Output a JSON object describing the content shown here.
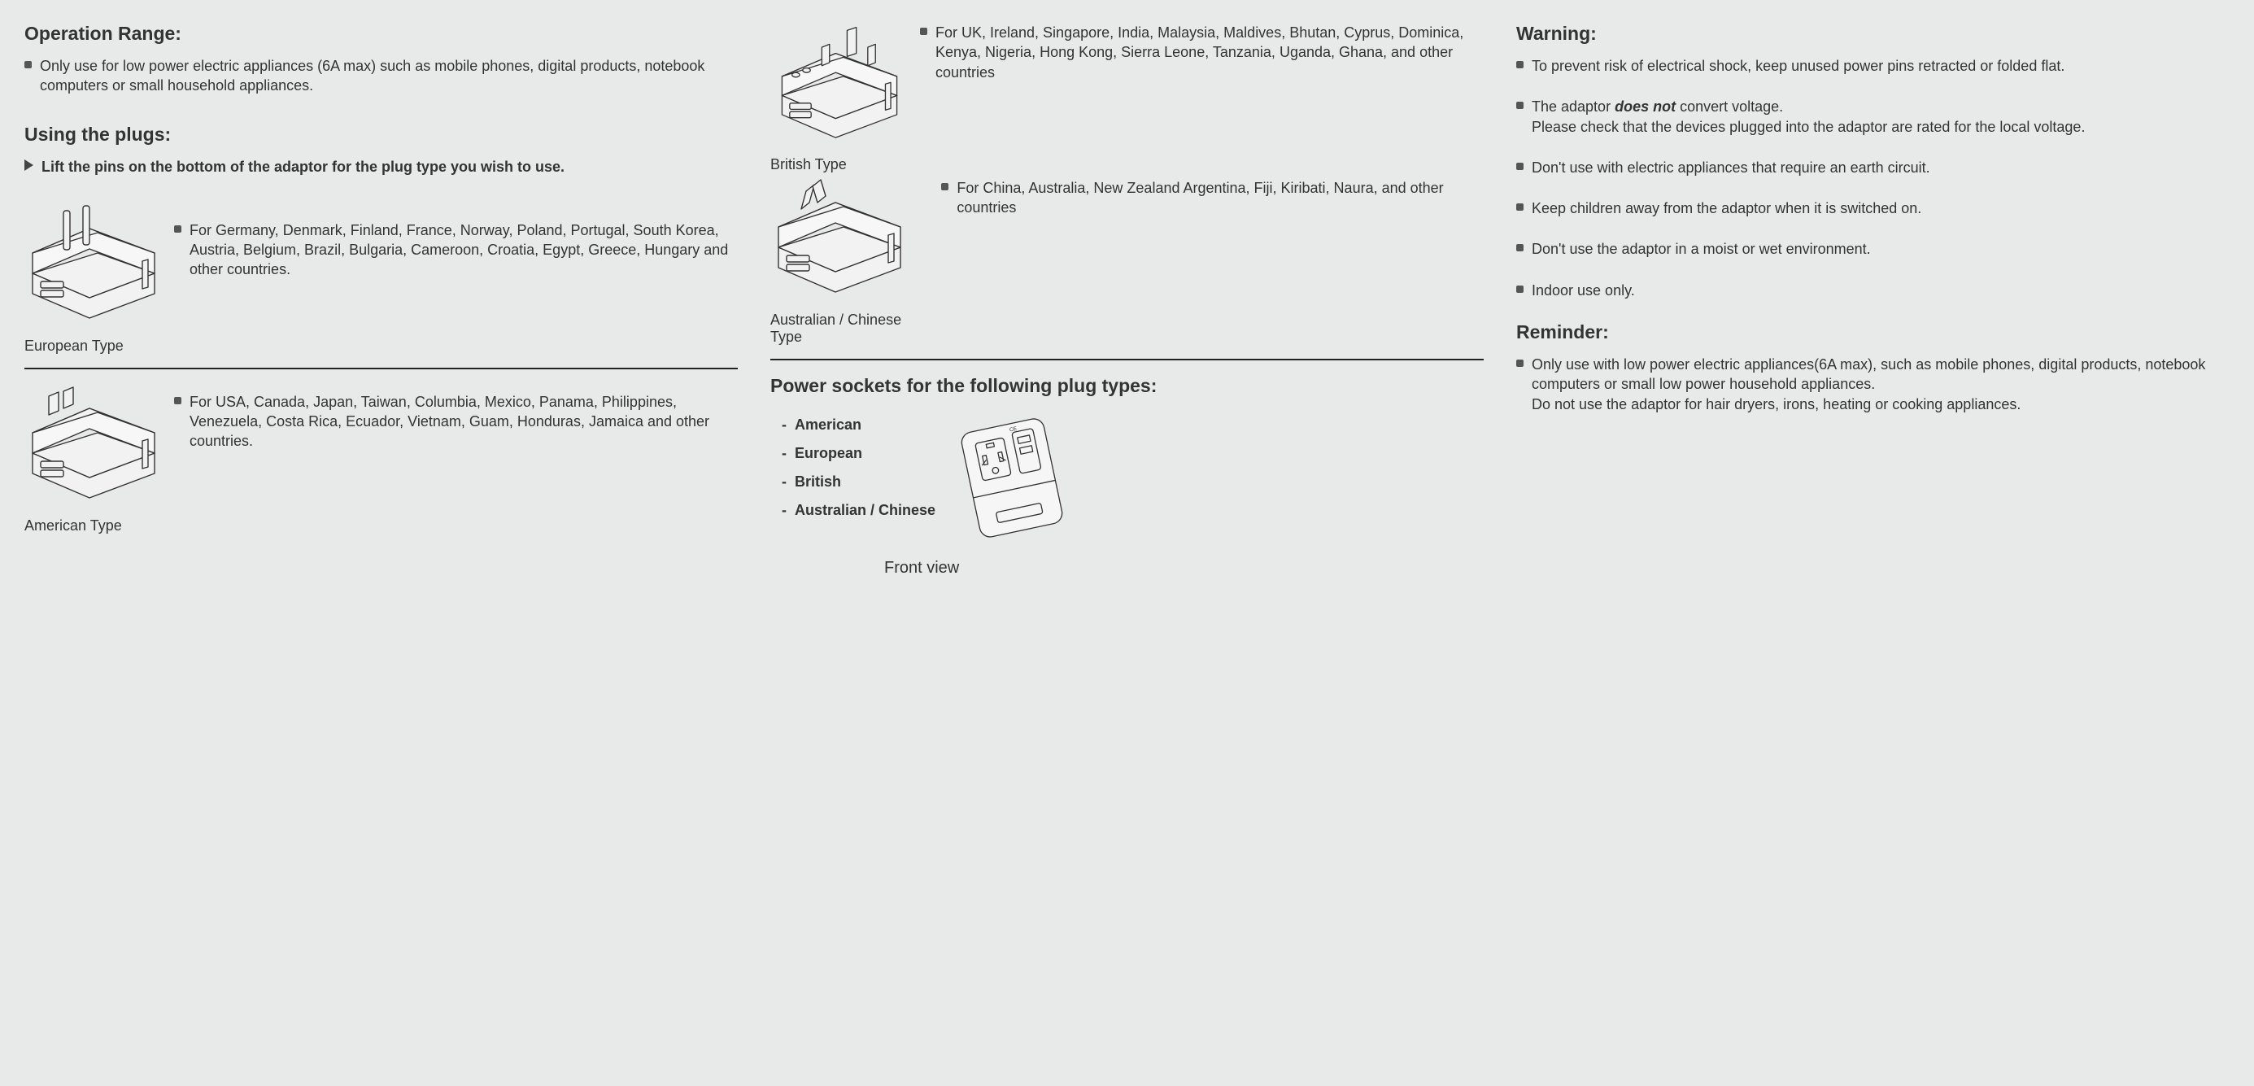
{
  "col1": {
    "h_op": "Operation Range:",
    "op_text": "Only use for low power electric appliances (6A max) such as mobile phones, digital products, notebook computers or small household appliances.",
    "h_using": "Using the plugs:",
    "using_text": "Lift the pins on the bottom of the adaptor for the plug type you wish to use.",
    "euro": {
      "caption": "European Type",
      "desc": "For Germany, Denmark, Finland, France, Norway, Poland, Portugal, South Korea, Austria, Belgium, Brazil, Bulgaria, Cameroon, Croatia, Egypt, Greece, Hungary and other countries."
    },
    "amer": {
      "caption": "American Type",
      "desc": "For USA, Canada, Japan, Taiwan, Columbia, Mexico, Panama, Philippines, Venezuela, Costa Rica, Ecuador, Vietnam, Guam, Honduras, Jamaica and other countries."
    }
  },
  "col2": {
    "brit": {
      "caption": "British Type",
      "desc": "For UK, Ireland, Singapore, India, Malaysia, Maldives, Bhutan, Cyprus, Dominica, Kenya, Nigeria, Hong Kong, Sierra Leone, Tanzania, Uganda, Ghana, and other countries"
    },
    "aus": {
      "caption": "Australian / Chinese Type",
      "desc": "For China, Australia, New Zealand Argentina, Fiji, Kiribati, Naura, and other countries"
    },
    "h_sockets": "Power sockets for the following plug types:",
    "sockets": [
      "American",
      "European",
      "British",
      "Australian / Chinese"
    ],
    "front_caption": "Front view"
  },
  "col3": {
    "h_warn": "Warning:",
    "warn": [
      {
        "t": "To prevent risk of electrical shock, keep unused power pins retracted or folded flat."
      },
      {
        "pre": "The adaptor ",
        "em": "does not",
        "post": " convert voltage.\nPlease check that the devices plugged into the adaptor are rated for the local voltage."
      },
      {
        "t": "Don't use with electric appliances that require an earth circuit."
      },
      {
        "t": "Keep children away from the adaptor when it is switched on."
      },
      {
        "t": "Don't use the adaptor in a moist or wet environment."
      },
      {
        "t": "Indoor use only."
      }
    ],
    "h_rem": "Reminder:",
    "rem": "Only use with low power electric appliances(6A max), such as mobile phones, digital products, notebook computers or small low power household appliances.\nDo not use the adaptor for hair dryers, irons, heating or cooking appliances."
  },
  "style": {
    "stroke": "#333333",
    "fill": "#f2f2f2"
  }
}
